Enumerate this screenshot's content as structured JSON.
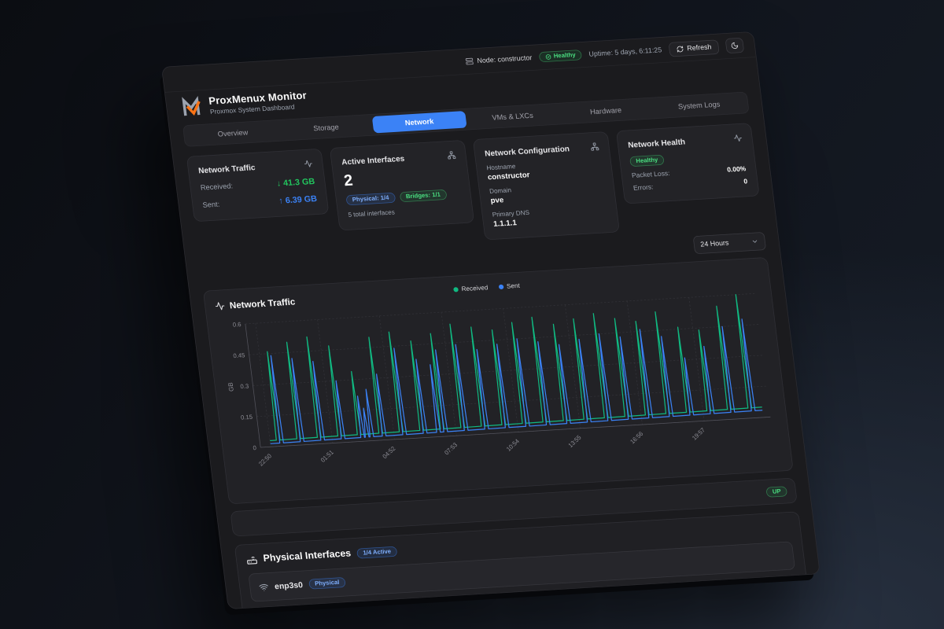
{
  "topbar": {
    "node": "Node: constructor",
    "health_badge": "Healthy",
    "uptime": "Uptime: 5 days, 6:11:25",
    "refresh_label": "Refresh"
  },
  "header": {
    "title": "ProxMenux Monitor",
    "subtitle": "Proxmox System Dashboard"
  },
  "tabs": {
    "active": "Network",
    "items": [
      {
        "label": "Overview"
      },
      {
        "label": "Storage"
      },
      {
        "label": "Network"
      },
      {
        "label": "VMs & LXCs"
      },
      {
        "label": "Hardware"
      },
      {
        "label": "System Logs"
      }
    ]
  },
  "cards": {
    "traffic": {
      "title": "Network Traffic",
      "received_label": "Received:",
      "received_value": "↓ 41.3 GB",
      "sent_label": "Sent:",
      "sent_value": "↑ 6.39 GB"
    },
    "interfaces": {
      "title": "Active Interfaces",
      "count": "2",
      "physical_badge": "Physical: 1/4",
      "bridges_badge": "Bridges: 1/1",
      "total": "5 total interfaces"
    },
    "config": {
      "title": "Network Configuration",
      "hostname_label": "Hostname",
      "hostname_value": "constructor",
      "domain_label": "Domain",
      "domain_value": "pve",
      "dns_label": "Primary DNS",
      "dns_value": "1.1.1.1"
    },
    "health": {
      "title": "Network Health",
      "status_badge": "Healthy",
      "packet_loss_label": "Packet Loss:",
      "packet_loss_value": "0.00%",
      "errors_label": "Errors:",
      "errors_value": "0"
    }
  },
  "range_select": {
    "value": "24 Hours"
  },
  "chart_card": {
    "title": "Network Traffic"
  },
  "chart_data": {
    "type": "line",
    "title": "Network Traffic",
    "ylabel": "GB",
    "ylim": [
      0,
      0.6
    ],
    "y_ticks": [
      0,
      0.15,
      0.3,
      0.45,
      0.6
    ],
    "x_ticks": [
      "22:50",
      "01:51",
      "04:52",
      "07:53",
      "10:54",
      "13:55",
      "16:56",
      "19:57"
    ],
    "x_tick_interval_hours": 3.0167,
    "domain_hours": 24,
    "grid": true,
    "legend": [
      "Received",
      "Sent"
    ],
    "legend_position": "top-center",
    "series": [
      {
        "name": "Received",
        "color": "#10b981",
        "unit": "GB",
        "baseline_start": 0.03,
        "baseline_end": 0.05,
        "spikes": [
          [
            0.4,
            0.46
          ],
          [
            1.4,
            0.5
          ],
          [
            2.4,
            0.52
          ],
          [
            3.4,
            0.47
          ],
          [
            4.35,
            0.34
          ],
          [
            5.4,
            0.5
          ],
          [
            6.4,
            0.52
          ],
          [
            7.4,
            0.47
          ],
          [
            8.4,
            0.5
          ],
          [
            9.4,
            0.54
          ],
          [
            10.4,
            0.52
          ],
          [
            11.4,
            0.5
          ],
          [
            12.4,
            0.53
          ],
          [
            13.4,
            0.55
          ],
          [
            14.4,
            0.51
          ],
          [
            15.4,
            0.53
          ],
          [
            16.4,
            0.55
          ],
          [
            17.4,
            0.52
          ],
          [
            18.4,
            0.5
          ],
          [
            19.4,
            0.54
          ],
          [
            20.4,
            0.46
          ],
          [
            21.4,
            0.44
          ],
          [
            22.4,
            0.55
          ],
          [
            23.4,
            0.6
          ]
        ]
      },
      {
        "name": "Sent",
        "color": "#3b82f6",
        "unit": "GB",
        "baseline_start": 0.015,
        "baseline_end": 0.035,
        "spikes": [
          [
            0.55,
            0.44
          ],
          [
            1.55,
            0.42
          ],
          [
            2.55,
            0.4
          ],
          [
            3.55,
            0.3
          ],
          [
            4.5,
            0.22
          ],
          [
            4.72,
            0.16
          ],
          [
            4.95,
            0.25
          ],
          [
            5.55,
            0.32
          ],
          [
            6.55,
            0.44
          ],
          [
            7.55,
            0.38
          ],
          [
            8.2,
            0.35
          ],
          [
            8.55,
            0.42
          ],
          [
            9.55,
            0.44
          ],
          [
            10.55,
            0.41
          ],
          [
            11.55,
            0.43
          ],
          [
            12.55,
            0.45
          ],
          [
            13.55,
            0.43
          ],
          [
            14.55,
            0.41
          ],
          [
            15.55,
            0.43
          ],
          [
            16.55,
            0.45
          ],
          [
            17.55,
            0.43
          ],
          [
            18.55,
            0.46
          ],
          [
            19.55,
            0.42
          ],
          [
            20.55,
            0.31
          ],
          [
            21.55,
            0.36
          ],
          [
            22.55,
            0.45
          ],
          [
            23.55,
            0.48
          ]
        ]
      }
    ]
  },
  "bridge_row": {
    "status_badge": "UP"
  },
  "physical_section": {
    "title": "Physical Interfaces",
    "active_badge": "1/4 Active",
    "rows": [
      {
        "name": "enp3s0",
        "type_badge": "Physical"
      }
    ]
  },
  "colors": {
    "accent_blue": "#3b82f6",
    "status_green": "#4ade80",
    "received_green": "#22c55e",
    "chart_green": "#10b981",
    "chart_blue": "#3b82f6"
  }
}
